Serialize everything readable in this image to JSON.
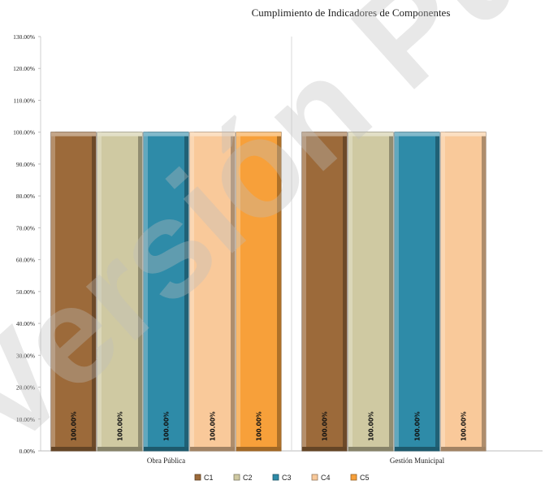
{
  "chart_data": {
    "type": "bar",
    "title": "Cumplimiento de Indicadores de Componentes",
    "categories": [
      "Obra Pública",
      "Gestión Municipal"
    ],
    "series": [
      {
        "name": "C1",
        "color": "#9C6A3A",
        "values": [
          1.0,
          1.0
        ],
        "labels": [
          "100.00%",
          "100.00%"
        ]
      },
      {
        "name": "C2",
        "color": "#CFC9A2",
        "values": [
          1.0,
          1.0
        ],
        "labels": [
          "100.00%",
          "100.00%"
        ]
      },
      {
        "name": "C3",
        "color": "#2E8BA8",
        "values": [
          1.0,
          1.0
        ],
        "labels": [
          "100.00%",
          "100.00%"
        ]
      },
      {
        "name": "C4",
        "color": "#F9C99A",
        "values": [
          1.0,
          1.0
        ],
        "labels": [
          "100.00%",
          "100.00%"
        ]
      },
      {
        "name": "C5",
        "color": "#F7A03A",
        "values": [
          1.0,
          null
        ],
        "labels": [
          "100.00%",
          ""
        ]
      }
    ],
    "ylim": [
      0,
      1.3
    ],
    "yticks": [
      "0.00%",
      "10.00%",
      "20.00%",
      "30.00%",
      "40.00%",
      "50.00%",
      "60.00%",
      "70.00%",
      "80.00%",
      "90.00%",
      "100.00%",
      "110.00%",
      "120.00%",
      "130.00%"
    ],
    "grid": false,
    "legend_position": "bottom",
    "watermark": "Versión Pública"
  }
}
